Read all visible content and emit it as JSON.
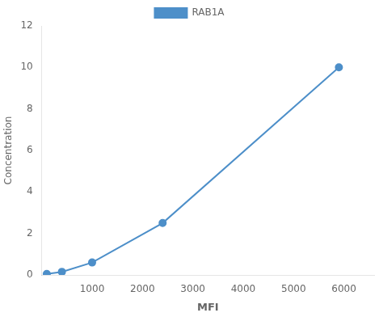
{
  "chart_data": {
    "type": "line",
    "x": [
      100,
      400,
      1000,
      2400,
      5900
    ],
    "series": [
      {
        "name": "RAB1A",
        "color": "#4d8fc9",
        "marker": "circle",
        "values": [
          0.05,
          0.15,
          0.6,
          2.5,
          10.0
        ]
      }
    ],
    "x_label": "MFI",
    "y_label": "Concentration",
    "xlim": [
      0,
      6600
    ],
    "xticks": [
      1000,
      2000,
      3000,
      4000,
      5000,
      6000
    ],
    "ylim": [
      0,
      12
    ],
    "yticks": [
      0,
      2,
      4,
      6,
      8,
      10,
      12
    ],
    "grid": false,
    "legend": "top"
  }
}
